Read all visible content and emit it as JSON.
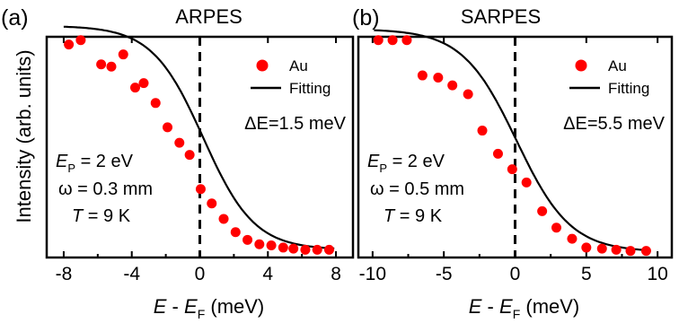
{
  "ylabel": "Intensity (arb. units)",
  "colors": {
    "data": "#ff0000",
    "fit": "#000000"
  },
  "chart_data": [
    {
      "type": "scatter",
      "panel_label": "(a)",
      "title": "ARPES",
      "xlabel_main": "E",
      "xlabel_sep": " - ",
      "xlabel_sub_base": "E",
      "xlabel_sub": "F",
      "xlabel_unit": " (meV)",
      "xlim": [
        -9,
        9
      ],
      "ylim": [
        0,
        1
      ],
      "xticks": [
        -8,
        -4,
        0,
        4,
        8
      ],
      "xtick_labels": [
        "-8",
        "-4",
        "0",
        "4",
        "8"
      ],
      "legend": {
        "position": "top-right",
        "data_label": "Au",
        "fit_label": "Fitting"
      },
      "resolution_label": "ΔE=1.5 meV",
      "params": {
        "ep_sym": "E",
        "ep_sub": "P",
        "ep_val": " = 2 eV",
        "omega": "ω = 0.3 mm",
        "t_sym": "T",
        "t_val": " = 9 K"
      },
      "series": [
        {
          "name": "Au",
          "x": [
            -7.7,
            -7.0,
            -5.8,
            -5.2,
            -4.5,
            -3.8,
            -3.3,
            -2.6,
            -1.9,
            -1.2,
            -0.6,
            0.05,
            0.7,
            1.4,
            2.1,
            2.8,
            3.5,
            4.2,
            4.9,
            5.5,
            6.2,
            6.9,
            7.6
          ],
          "y": [
            0.965,
            0.985,
            0.875,
            0.865,
            0.92,
            0.77,
            0.79,
            0.7,
            0.59,
            0.52,
            0.465,
            0.31,
            0.245,
            0.175,
            0.115,
            0.08,
            0.06,
            0.055,
            0.045,
            0.04,
            0.035,
            0.035,
            0.035
          ]
        }
      ],
      "fit": {
        "center": 0.2,
        "width": 1.5,
        "low": 0.035,
        "high": 1.05
      }
    },
    {
      "type": "scatter",
      "panel_label": "(b)",
      "title": "SARPES",
      "xlabel_main": "E",
      "xlabel_sep": " - ",
      "xlabel_sub_base": "E",
      "xlabel_sub": "F",
      "xlabel_unit": " (meV)",
      "xlim": [
        -11,
        11
      ],
      "ylim": [
        0,
        1
      ],
      "xticks": [
        -10,
        -5,
        0,
        5,
        10
      ],
      "xtick_labels": [
        "-10",
        "-5",
        "0",
        "5",
        "10"
      ],
      "legend": {
        "position": "top-right",
        "data_label": "Au",
        "fit_label": "Fitting"
      },
      "resolution_label": "ΔE=5.5 meV",
      "params": {
        "ep_sym": "E",
        "ep_sub": "P",
        "ep_val": " = 2 eV",
        "omega": "ω = 0.5 mm",
        "t_sym": "T",
        "t_val": " = 9 K"
      },
      "series": [
        {
          "name": "Au",
          "x": [
            -9.6,
            -8.6,
            -7.6,
            -6.5,
            -5.4,
            -4.4,
            -3.3,
            -2.3,
            -1.2,
            -0.2,
            0.8,
            1.9,
            2.9,
            4.0,
            5.0,
            6.1,
            7.1,
            8.1,
            9.2
          ],
          "y": [
            0.985,
            0.985,
            0.985,
            0.825,
            0.815,
            0.78,
            0.74,
            0.575,
            0.47,
            0.4,
            0.34,
            0.21,
            0.135,
            0.085,
            0.045,
            0.04,
            0.035,
            0.03,
            0.03
          ]
        }
      ],
      "fit": {
        "center": 0.1,
        "width": 1.9,
        "low": 0.025,
        "high": 1.035
      }
    }
  ]
}
